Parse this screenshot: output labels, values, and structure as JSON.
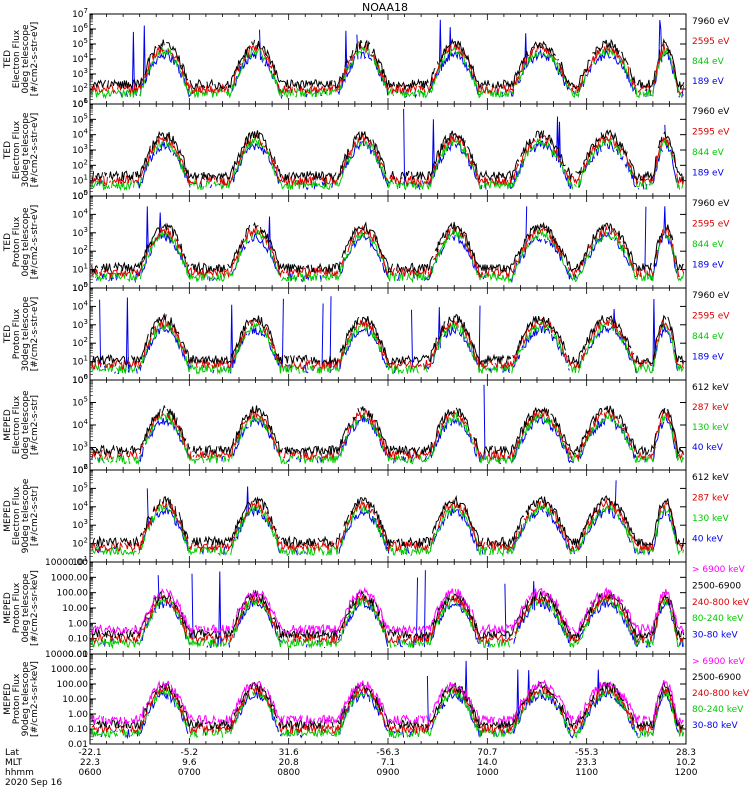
{
  "chart_data": {
    "type": "line",
    "title": "NOAA18",
    "x": [
      "0600",
      "0700",
      "0800",
      "0900",
      "1000",
      "1100",
      "1200"
    ],
    "footer": {
      "row_labels": [
        "Lat",
        "MLT",
        "hhmm"
      ],
      "lat": [
        "-22.1",
        "-5.2",
        "31.6",
        "-56.3",
        "70.7",
        "-55.3",
        "28.3"
      ],
      "mlt": [
        "22.3",
        "9.6",
        "20.8",
        "7.1",
        "14.0",
        "23.3",
        "10.2"
      ],
      "hhmm": [
        "0600",
        "0700",
        "0800",
        "0900",
        "1000",
        "1100",
        "1200"
      ],
      "date": "2020 Sep 16"
    },
    "panels": [
      {
        "ylabel": [
          "TED",
          "Electron Flux",
          "0deg telescope",
          "[#/cm2-s-str-eV]"
        ],
        "scale": "log",
        "ylim": [
          10,
          10000000
        ],
        "ticks": [
          "10^1",
          "10^2",
          "10^3",
          "10^4",
          "10^5",
          "10^6",
          "10^7"
        ],
        "series": [
          {
            "name": "7960 eV",
            "color": "#000000"
          },
          {
            "name": "2595 eV",
            "color": "#dd0000"
          },
          {
            "name": "844 eV",
            "color": "#00cc00"
          },
          {
            "name": "189 eV",
            "color": "#0000ee"
          }
        ]
      },
      {
        "ylabel": [
          "TED",
          "Electron Flux",
          "30deg telescope",
          "[#/cm2-s-str-eV]"
        ],
        "scale": "log",
        "ylim": [
          1,
          1000000
        ],
        "ticks": [
          "10^0",
          "10^1",
          "10^2",
          "10^3",
          "10^4",
          "10^5",
          "10^6"
        ],
        "series": [
          {
            "name": "7960 eV",
            "color": "#000000"
          },
          {
            "name": "2595 eV",
            "color": "#dd0000"
          },
          {
            "name": "844 eV",
            "color": "#00cc00"
          },
          {
            "name": "189 eV",
            "color": "#0000ee"
          }
        ]
      },
      {
        "ylabel": [
          "TED",
          "Proton Flux",
          "0deg telescope",
          "[#/cm2-s-str-eV]"
        ],
        "scale": "log",
        "ylim": [
          1,
          100000
        ],
        "ticks": [
          "10^0",
          "10^1",
          "10^2",
          "10^3",
          "10^4",
          "10^5"
        ],
        "series": [
          {
            "name": "7960 eV",
            "color": "#000000"
          },
          {
            "name": "2595 eV",
            "color": "#dd0000"
          },
          {
            "name": "844 eV",
            "color": "#00cc00"
          },
          {
            "name": "189 eV",
            "color": "#0000ee"
          }
        ]
      },
      {
        "ylabel": [
          "TED",
          "Proton Flux",
          "30deg telescope",
          "[#/cm2-s-str-eV]"
        ],
        "scale": "log",
        "ylim": [
          1,
          100000
        ],
        "ticks": [
          "10^0",
          "10^1",
          "10^2",
          "10^3",
          "10^4",
          "10^5"
        ],
        "series": [
          {
            "name": "7960 eV",
            "color": "#000000"
          },
          {
            "name": "2595 eV",
            "color": "#dd0000"
          },
          {
            "name": "844 eV",
            "color": "#00cc00"
          },
          {
            "name": "189 eV",
            "color": "#0000ee"
          }
        ]
      },
      {
        "ylabel": [
          "MEPED",
          "Electron Flux",
          "0deg telescope",
          "[#/cm2-s-str]"
        ],
        "scale": "log",
        "ylim": [
          100,
          1000000
        ],
        "ticks": [
          "10^2",
          "10^3",
          "10^4",
          "10^5",
          "10^6"
        ],
        "series": [
          {
            "name": "612 keV",
            "color": "#000000"
          },
          {
            "name": "287 keV",
            "color": "#dd0000"
          },
          {
            "name": "130 keV",
            "color": "#00cc00"
          },
          {
            "name": "40 keV",
            "color": "#0000ee"
          }
        ]
      },
      {
        "ylabel": [
          "MEPED",
          "Electron Flux",
          "90deg telescope",
          "[#/cm2-s-str]"
        ],
        "scale": "log",
        "ylim": [
          10,
          1000000
        ],
        "ticks": [
          "10^1",
          "10^2",
          "10^3",
          "10^4",
          "10^5",
          "10^6"
        ],
        "series": [
          {
            "name": "612 keV",
            "color": "#000000"
          },
          {
            "name": "287 keV",
            "color": "#dd0000"
          },
          {
            "name": "130 keV",
            "color": "#00cc00"
          },
          {
            "name": "40 keV",
            "color": "#0000ee"
          }
        ]
      },
      {
        "ylabel": [
          "MEPED",
          "Proton Flux",
          "0deg telescope",
          "[#/cm2-s-sr-keV]"
        ],
        "scale": "log",
        "ylim": [
          0.01,
          10000
        ],
        "ticks": [
          "0.01",
          "0.10",
          "1.00",
          "10.00",
          "100.00",
          "1000.00",
          "10000.00"
        ],
        "series": [
          {
            "name": "> 6900 keV",
            "color": "#ff00ff"
          },
          {
            "name": "2500-6900",
            "color": "#000000"
          },
          {
            "name": "240-800 keV",
            "color": "#dd0000"
          },
          {
            "name": "80-240 keV",
            "color": "#00cc00"
          },
          {
            "name": "30-80 keV",
            "color": "#0000ee"
          }
        ]
      },
      {
        "ylabel": [
          "MEPED",
          "Proton Flux",
          "90deg telescope",
          "[#/cm2-s-sr-keV]"
        ],
        "scale": "log",
        "ylim": [
          0.01,
          10000
        ],
        "ticks": [
          "0.01",
          "0.10",
          "1.00",
          "10.00",
          "100.00",
          "1000.00",
          "10000.00"
        ],
        "series": [
          {
            "name": "> 6900 keV",
            "color": "#ff00ff"
          },
          {
            "name": "2500-6900",
            "color": "#000000"
          },
          {
            "name": "240-800 keV",
            "color": "#dd0000"
          },
          {
            "name": "80-240 keV",
            "color": "#00cc00"
          },
          {
            "name": "30-80 keV",
            "color": "#0000ee"
          }
        ]
      }
    ]
  }
}
